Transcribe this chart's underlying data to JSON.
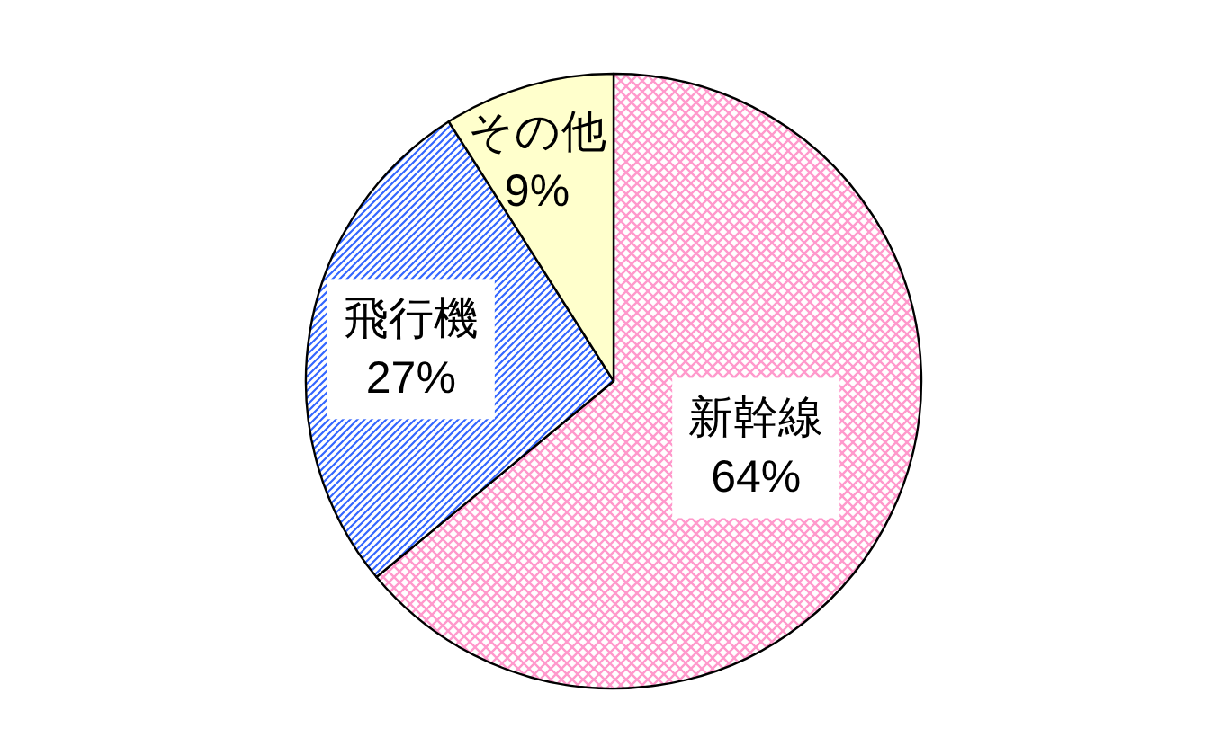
{
  "chart_data": {
    "type": "pie",
    "categories": [
      "新幹線",
      "飛行機",
      "その他"
    ],
    "values": [
      64,
      27,
      9
    ],
    "value_labels": [
      "64%",
      "27%",
      "9%"
    ],
    "colors": [
      "#ff99cc",
      "#3366ff",
      "#ffffcc"
    ]
  }
}
